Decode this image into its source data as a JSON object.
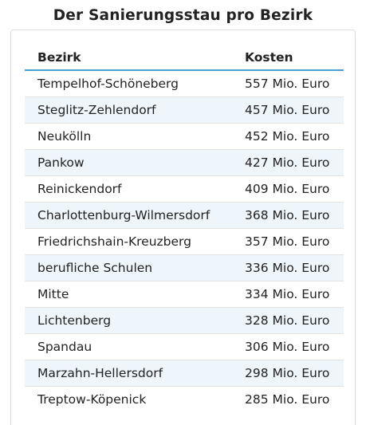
{
  "title": "Der Sanierungsstau pro Bezirk",
  "table": {
    "headers": [
      "Bezirk",
      "Kosten"
    ],
    "rows": [
      [
        "Tempelhof-Schöneberg",
        "557 Mio. Euro"
      ],
      [
        "Steglitz-Zehlendorf",
        "457 Mio. Euro"
      ],
      [
        "Neukölln",
        "452 Mio. Euro"
      ],
      [
        "Pankow",
        "427 Mio. Euro"
      ],
      [
        "Reinickendorf",
        "409 Mio. Euro"
      ],
      [
        "Charlottenburg-Wilmersdorf",
        "368 Mio. Euro"
      ],
      [
        "Friedrichshain-Kreuzberg",
        "357 Mio. Euro"
      ],
      [
        "berufliche Schulen",
        "336 Mio. Euro"
      ],
      [
        "Mitte",
        "334 Mio. Euro"
      ],
      [
        "Lichtenberg",
        "328 Mio. Euro"
      ],
      [
        "Spandau",
        "306 Mio. Euro"
      ],
      [
        "Marzahn-Hellersdorf",
        "298 Mio. Euro"
      ],
      [
        "Treptow-Köpenick",
        "285 Mio. Euro"
      ]
    ]
  },
  "colors": {
    "header_underline": "#4a9fd8",
    "row_stripe": "#eef5fb",
    "row_divider": "#e2e2e2",
    "card_border": "#dcdcdc"
  }
}
